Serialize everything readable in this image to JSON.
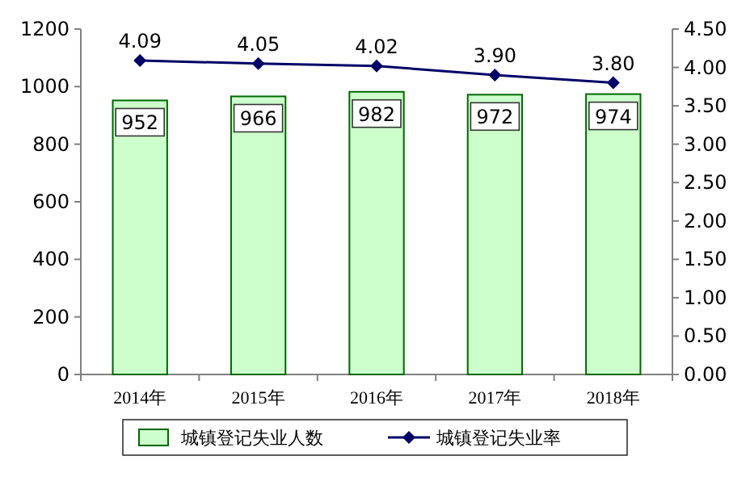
{
  "chart_data": {
    "type": "bar",
    "categories": [
      "2014年",
      "2015年",
      "2016年",
      "2017年",
      "2018年"
    ],
    "series": [
      {
        "name": "城镇登记失业人数",
        "color": "#ccffcc",
        "values": [
          952,
          966,
          982,
          972,
          974
        ]
      },
      {
        "name": "城镇登记失业率",
        "type": "line",
        "axis": "y2",
        "color": "#000066",
        "values": [
          4.09,
          4.05,
          4.02,
          3.9,
          3.8
        ],
        "value_labels": [
          "4.09",
          "4.05",
          "4.02",
          "3.90",
          "3.80"
        ]
      }
    ],
    "ylim": [
      0,
      1200
    ],
    "yticks": [
      0,
      200,
      400,
      600,
      800,
      1000,
      1200
    ],
    "y2lim": [
      0,
      4.5
    ],
    "y2ticks": [
      {
        "value": 0,
        "label": "0.00"
      },
      {
        "value": 0.5,
        "label": "0.50"
      },
      {
        "value": 1,
        "label": "1.00"
      },
      {
        "value": 1.5,
        "label": "1.50"
      },
      {
        "value": 2,
        "label": "2.00"
      },
      {
        "value": 2.5,
        "label": "2.50"
      },
      {
        "value": 3,
        "label": "3.00"
      },
      {
        "value": 3.5,
        "label": "3.50"
      },
      {
        "value": 4,
        "label": "4.00"
      },
      {
        "value": 4.5,
        "label": "4.50"
      }
    ],
    "data_labels": true,
    "legend": "bottom",
    "marker": "diamond",
    "grid": false
  }
}
